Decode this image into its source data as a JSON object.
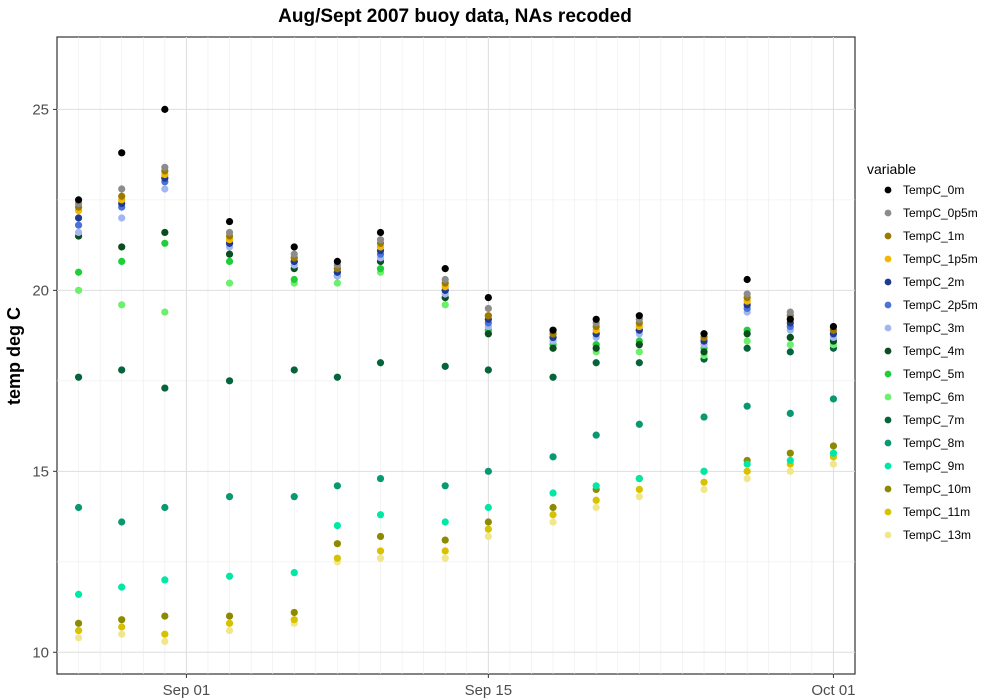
{
  "chart_data": {
    "type": "scatter",
    "title": "Aug/Sept 2007 buoy data, NAs recoded",
    "xlabel": "",
    "ylabel": "temp deg C",
    "x_range": [
      "2007-08-26",
      "2007-10-02"
    ],
    "ylim": [
      9.4,
      27.0
    ],
    "x_ticks": [
      {
        "date": "2007-09-01",
        "label": "Sep 01"
      },
      {
        "date": "2007-09-15",
        "label": "Sep 15"
      },
      {
        "date": "2007-10-01",
        "label": "Oct 01"
      }
    ],
    "y_ticks": [
      10,
      15,
      20,
      25
    ],
    "grid": true,
    "legend": {
      "title": "variable",
      "position": "right"
    },
    "series": [
      {
        "name": "TempC_0m",
        "color": "#000000",
        "x": [
          "2007-08-27",
          "2007-08-29",
          "2007-08-31",
          "2007-09-03",
          "2007-09-06",
          "2007-09-08",
          "2007-09-10",
          "2007-09-13",
          "2007-09-15",
          "2007-09-18",
          "2007-09-20",
          "2007-09-22",
          "2007-09-25",
          "2007-09-27",
          "2007-09-29",
          "2007-10-01"
        ],
        "values": [
          22.5,
          23.8,
          25.0,
          21.9,
          21.2,
          20.8,
          21.6,
          20.6,
          19.8,
          18.9,
          19.2,
          19.3,
          18.8,
          20.3,
          19.2,
          19.0
        ]
      },
      {
        "name": "TempC_0p5m",
        "color": "#8c8c8c",
        "x": [
          "2007-08-27",
          "2007-08-29",
          "2007-08-31",
          "2007-09-03",
          "2007-09-06",
          "2007-09-08",
          "2007-09-10",
          "2007-09-13",
          "2007-09-15",
          "2007-09-18",
          "2007-09-20",
          "2007-09-22",
          "2007-09-25",
          "2007-09-27",
          "2007-09-29",
          "2007-10-01"
        ],
        "values": [
          22.4,
          22.8,
          23.4,
          21.6,
          21.0,
          20.7,
          21.4,
          20.3,
          19.5,
          18.9,
          19.1,
          19.2,
          18.8,
          19.9,
          19.4,
          19.0
        ]
      },
      {
        "name": "TempC_1m",
        "color": "#9c7a00",
        "x": [
          "2007-08-27",
          "2007-08-29",
          "2007-08-31",
          "2007-09-03",
          "2007-09-06",
          "2007-09-08",
          "2007-09-10",
          "2007-09-13",
          "2007-09-15",
          "2007-09-18",
          "2007-09-20",
          "2007-09-22",
          "2007-09-25",
          "2007-09-27",
          "2007-09-29",
          "2007-10-01"
        ],
        "values": [
          22.3,
          22.6,
          23.3,
          21.5,
          20.9,
          20.6,
          21.3,
          20.2,
          19.3,
          18.8,
          19.0,
          19.1,
          18.7,
          19.8,
          19.3,
          18.9
        ]
      },
      {
        "name": "TempC_1p5m",
        "color": "#f2b800",
        "x": [
          "2007-08-27",
          "2007-08-29",
          "2007-08-31",
          "2007-09-03",
          "2007-09-06",
          "2007-09-08",
          "2007-09-10",
          "2007-09-13",
          "2007-09-15",
          "2007-09-18",
          "2007-09-20",
          "2007-09-22",
          "2007-09-25",
          "2007-09-27",
          "2007-09-29",
          "2007-10-01"
        ],
        "values": [
          22.2,
          22.5,
          23.2,
          21.4,
          20.9,
          20.6,
          21.2,
          20.1,
          19.3,
          18.8,
          18.9,
          19.0,
          18.7,
          19.7,
          19.2,
          18.9
        ]
      },
      {
        "name": "TempC_2m",
        "color": "#1f3a93",
        "x": [
          "2007-08-27",
          "2007-08-29",
          "2007-08-31",
          "2007-09-03",
          "2007-09-06",
          "2007-09-08",
          "2007-09-10",
          "2007-09-13",
          "2007-09-15",
          "2007-09-18",
          "2007-09-20",
          "2007-09-22",
          "2007-09-25",
          "2007-09-27",
          "2007-09-29",
          "2007-10-01"
        ],
        "values": [
          22.0,
          22.4,
          23.1,
          21.3,
          20.8,
          20.5,
          21.1,
          20.0,
          19.2,
          18.7,
          18.8,
          18.9,
          18.6,
          19.6,
          19.1,
          18.8
        ]
      },
      {
        "name": "TempC_2p5m",
        "color": "#4a72d8",
        "x": [
          "2007-08-27",
          "2007-08-29",
          "2007-08-31",
          "2007-09-03",
          "2007-09-06",
          "2007-09-08",
          "2007-09-10",
          "2007-09-13",
          "2007-09-15",
          "2007-09-18",
          "2007-09-20",
          "2007-09-22",
          "2007-09-25",
          "2007-09-27",
          "2007-09-29",
          "2007-10-01"
        ],
        "values": [
          21.8,
          22.3,
          23.0,
          21.3,
          20.8,
          20.5,
          21.0,
          20.0,
          19.1,
          18.7,
          18.8,
          18.9,
          18.6,
          19.5,
          19.0,
          18.8
        ]
      },
      {
        "name": "TempC_3m",
        "color": "#a2b7f2",
        "x": [
          "2007-08-27",
          "2007-08-29",
          "2007-08-31",
          "2007-09-03",
          "2007-09-06",
          "2007-09-08",
          "2007-09-10",
          "2007-09-13",
          "2007-09-15",
          "2007-09-18",
          "2007-09-20",
          "2007-09-22",
          "2007-09-25",
          "2007-09-27",
          "2007-09-29",
          "2007-10-01"
        ],
        "values": [
          21.6,
          22.0,
          22.8,
          21.2,
          20.7,
          20.4,
          20.9,
          19.9,
          19.0,
          18.6,
          18.7,
          18.8,
          18.5,
          19.4,
          18.9,
          18.7
        ]
      },
      {
        "name": "TempC_4m",
        "color": "#0b4d1f",
        "x": [
          "2007-08-27",
          "2007-08-29",
          "2007-08-31",
          "2007-09-03",
          "2007-09-06",
          "2007-09-08",
          "2007-09-10",
          "2007-09-13",
          "2007-09-15",
          "2007-09-18",
          "2007-09-20",
          "2007-09-22",
          "2007-09-25",
          "2007-09-27",
          "2007-09-29",
          "2007-10-01"
        ],
        "values": [
          21.5,
          21.2,
          21.6,
          21.0,
          20.6,
          20.4,
          20.8,
          19.8,
          18.8,
          18.4,
          18.4,
          18.5,
          18.3,
          18.8,
          18.7,
          18.6
        ]
      },
      {
        "name": "TempC_5m",
        "color": "#1fcf3a",
        "x": [
          "2007-08-27",
          "2007-08-29",
          "2007-08-31",
          "2007-09-03",
          "2007-09-06",
          "2007-09-08",
          "2007-09-10",
          "2007-09-13",
          "2007-09-15",
          "2007-09-18",
          "2007-09-20",
          "2007-09-22",
          "2007-09-25",
          "2007-09-27",
          "2007-09-29",
          "2007-10-01"
        ],
        "values": [
          20.5,
          20.8,
          21.3,
          20.8,
          20.3,
          20.4,
          20.6,
          19.8,
          18.9,
          18.5,
          18.5,
          18.6,
          18.4,
          18.9,
          18.7,
          18.6
        ]
      },
      {
        "name": "TempC_6m",
        "color": "#6cf06c",
        "x": [
          "2007-08-27",
          "2007-08-29",
          "2007-08-31",
          "2007-09-03",
          "2007-09-06",
          "2007-09-08",
          "2007-09-10",
          "2007-09-13",
          "2007-09-15",
          "2007-09-18",
          "2007-09-20",
          "2007-09-22",
          "2007-09-25",
          "2007-09-27",
          "2007-09-29",
          "2007-10-01"
        ],
        "values": [
          20.0,
          19.6,
          19.4,
          20.2,
          20.2,
          20.2,
          20.5,
          19.6,
          18.8,
          18.4,
          18.3,
          18.3,
          18.2,
          18.6,
          18.5,
          18.5
        ]
      },
      {
        "name": "TempC_7m",
        "color": "#04643c",
        "x": [
          "2007-08-27",
          "2007-08-29",
          "2007-08-31",
          "2007-09-03",
          "2007-09-06",
          "2007-09-08",
          "2007-09-10",
          "2007-09-13",
          "2007-09-15",
          "2007-09-18",
          "2007-09-20",
          "2007-09-22",
          "2007-09-25",
          "2007-09-27",
          "2007-09-29",
          "2007-10-01"
        ],
        "values": [
          17.6,
          17.8,
          17.3,
          17.5,
          17.8,
          17.6,
          18.0,
          17.9,
          17.8,
          17.6,
          18.0,
          18.0,
          18.1,
          18.4,
          18.3,
          18.4
        ]
      },
      {
        "name": "TempC_8m",
        "color": "#089970",
        "x": [
          "2007-08-27",
          "2007-08-29",
          "2007-08-31",
          "2007-09-03",
          "2007-09-06",
          "2007-09-08",
          "2007-09-10",
          "2007-09-13",
          "2007-09-15",
          "2007-09-18",
          "2007-09-20",
          "2007-09-22",
          "2007-09-25",
          "2007-09-27",
          "2007-09-29",
          "2007-10-01"
        ],
        "values": [
          14.0,
          13.6,
          14.0,
          14.3,
          14.3,
          14.6,
          14.8,
          14.6,
          15.0,
          15.4,
          16.0,
          16.3,
          16.5,
          16.8,
          16.6,
          17.0
        ]
      },
      {
        "name": "TempC_9m",
        "color": "#00e8a6",
        "x": [
          "2007-08-27",
          "2007-08-29",
          "2007-08-31",
          "2007-09-03",
          "2007-09-06",
          "2007-09-08",
          "2007-09-10",
          "2007-09-13",
          "2007-09-15",
          "2007-09-18",
          "2007-09-20",
          "2007-09-22",
          "2007-09-25",
          "2007-09-27",
          "2007-09-29",
          "2007-10-01"
        ],
        "values": [
          11.6,
          11.8,
          12.0,
          12.1,
          12.2,
          13.5,
          13.8,
          13.6,
          14.0,
          14.4,
          14.6,
          14.8,
          15.0,
          15.2,
          15.3,
          15.5
        ]
      },
      {
        "name": "TempC_10m",
        "color": "#8c8a00",
        "x": [
          "2007-08-27",
          "2007-08-29",
          "2007-08-31",
          "2007-09-03",
          "2007-09-06",
          "2007-09-08",
          "2007-09-10",
          "2007-09-13",
          "2007-09-15",
          "2007-09-18",
          "2007-09-20",
          "2007-09-22",
          "2007-09-25",
          "2007-09-27",
          "2007-09-29",
          "2007-10-01"
        ],
        "values": [
          10.8,
          10.9,
          11.0,
          11.0,
          11.1,
          13.0,
          13.2,
          13.1,
          13.6,
          14.0,
          14.5,
          14.8,
          15.0,
          15.3,
          15.5,
          15.7
        ]
      },
      {
        "name": "TempC_11m",
        "color": "#d6c200",
        "x": [
          "2007-08-27",
          "2007-08-29",
          "2007-08-31",
          "2007-09-03",
          "2007-09-06",
          "2007-09-08",
          "2007-09-10",
          "2007-09-13",
          "2007-09-15",
          "2007-09-18",
          "2007-09-20",
          "2007-09-22",
          "2007-09-25",
          "2007-09-27",
          "2007-09-29",
          "2007-10-01"
        ],
        "values": [
          10.6,
          10.7,
          10.5,
          10.8,
          10.9,
          12.6,
          12.8,
          12.8,
          13.4,
          13.8,
          14.2,
          14.5,
          14.7,
          15.0,
          15.2,
          15.4
        ]
      },
      {
        "name": "TempC_13m",
        "color": "#f2e68a",
        "x": [
          "2007-08-27",
          "2007-08-29",
          "2007-08-31",
          "2007-09-03",
          "2007-09-06",
          "2007-09-08",
          "2007-09-10",
          "2007-09-13",
          "2007-09-15",
          "2007-09-18",
          "2007-09-20",
          "2007-09-22",
          "2007-09-25",
          "2007-09-27",
          "2007-09-29",
          "2007-10-01"
        ],
        "values": [
          10.4,
          10.5,
          10.3,
          10.6,
          10.8,
          12.5,
          12.6,
          12.6,
          13.2,
          13.6,
          14.0,
          14.3,
          14.5,
          14.8,
          15.0,
          15.2
        ]
      }
    ]
  }
}
